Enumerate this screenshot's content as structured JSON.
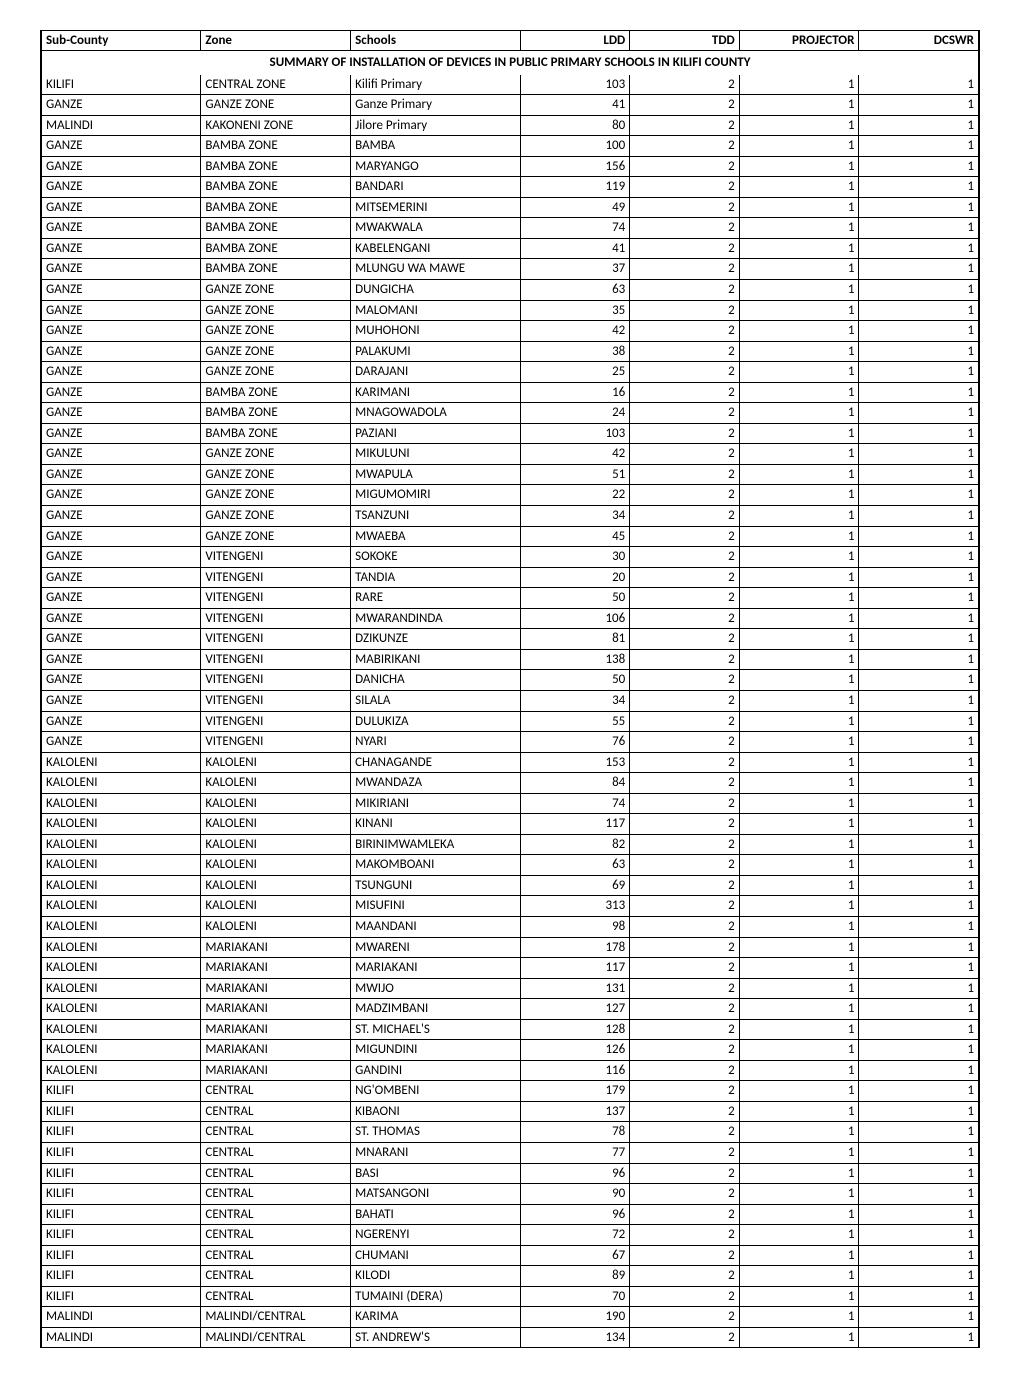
{
  "title": "SUMMARY OF  INSTALLATION OF DEVICES IN PUBLIC PRIMARY SCHOOLS IN KILIFI   COUNTY",
  "columns": [
    "Sub-County",
    "Zone",
    "Schools",
    "LDD",
    "TDD",
    "PROJECTOR",
    "DCSWR"
  ],
  "column_align": [
    "left",
    "left",
    "left",
    "right",
    "right",
    "right",
    "right"
  ],
  "rows": [
    [
      "KILIFI",
      "CENTRAL ZONE",
      "Kilifi Primary",
      "103",
      "2",
      "1",
      "1"
    ],
    [
      "GANZE",
      "GANZE ZONE",
      "Ganze Primary",
      "41",
      "2",
      "1",
      "1"
    ],
    [
      "MALINDI",
      "KAKONENI ZONE",
      "Jilore Primary",
      "80",
      "2",
      "1",
      "1"
    ],
    [
      "GANZE",
      "BAMBA ZONE",
      "BAMBA",
      "100",
      "2",
      "1",
      "1"
    ],
    [
      "GANZE",
      "BAMBA ZONE",
      "MARYANGO",
      "156",
      "2",
      "1",
      "1"
    ],
    [
      "GANZE",
      "BAMBA ZONE",
      "BANDARI",
      "119",
      "2",
      "1",
      "1"
    ],
    [
      "GANZE",
      "BAMBA ZONE",
      "MITSEMERINI",
      "49",
      "2",
      "1",
      "1"
    ],
    [
      "GANZE",
      "BAMBA ZONE",
      "MWAKWALA",
      "74",
      "2",
      "1",
      "1"
    ],
    [
      "GANZE",
      "BAMBA ZONE",
      "KABELENGANI",
      "41",
      "2",
      "1",
      "1"
    ],
    [
      "GANZE",
      "BAMBA ZONE",
      "MLUNGU WA MAWE",
      "37",
      "2",
      "1",
      "1"
    ],
    [
      "GANZE",
      "GANZE ZONE",
      "DUNGICHA",
      "63",
      "2",
      "1",
      "1"
    ],
    [
      "GANZE",
      "GANZE ZONE",
      "MALOMANI",
      "35",
      "2",
      "1",
      "1"
    ],
    [
      "GANZE",
      "GANZE ZONE",
      "MUHOHONI",
      "42",
      "2",
      "1",
      "1"
    ],
    [
      "GANZE",
      "GANZE ZONE",
      "PALAKUMI",
      "38",
      "2",
      "1",
      "1"
    ],
    [
      "GANZE",
      "GANZE ZONE",
      "DARAJANI",
      "25",
      "2",
      "1",
      "1"
    ],
    [
      "GANZE",
      "BAMBA ZONE",
      "KARIMANI",
      "16",
      "2",
      "1",
      "1"
    ],
    [
      "GANZE",
      "BAMBA ZONE",
      "MNAGOWADOLA",
      "24",
      "2",
      "1",
      "1"
    ],
    [
      "GANZE",
      "BAMBA ZONE",
      "PAZIANI",
      "103",
      "2",
      "1",
      "1"
    ],
    [
      "GANZE",
      "GANZE ZONE",
      "MIKULUNI",
      "42",
      "2",
      "1",
      "1"
    ],
    [
      "GANZE",
      "GANZE ZONE",
      "MWAPULA",
      "51",
      "2",
      "1",
      "1"
    ],
    [
      "GANZE",
      "GANZE ZONE",
      "MIGUMOMIRI",
      "22",
      "2",
      "1",
      "1"
    ],
    [
      "GANZE",
      "GANZE ZONE",
      "TSANZUNI",
      "34",
      "2",
      "1",
      "1"
    ],
    [
      "GANZE",
      "GANZE ZONE",
      "MWAEBA",
      "45",
      "2",
      "1",
      "1"
    ],
    [
      "GANZE",
      "VITENGENI",
      "SOKOKE",
      "30",
      "2",
      "1",
      "1"
    ],
    [
      "GANZE",
      "VITENGENI",
      "TANDIA",
      "20",
      "2",
      "1",
      "1"
    ],
    [
      "GANZE",
      "VITENGENI",
      "RARE",
      "50",
      "2",
      "1",
      "1"
    ],
    [
      "GANZE",
      "VITENGENI",
      "MWARANDINDA",
      "106",
      "2",
      "1",
      "1"
    ],
    [
      "GANZE",
      "VITENGENI",
      "DZIKUNZE",
      "81",
      "2",
      "1",
      "1"
    ],
    [
      "GANZE",
      "VITENGENI",
      "MABIRIKANI",
      "138",
      "2",
      "1",
      "1"
    ],
    [
      "GANZE",
      "VITENGENI",
      "DANICHA",
      "50",
      "2",
      "1",
      "1"
    ],
    [
      "GANZE",
      "VITENGENI",
      "SILALA",
      "34",
      "2",
      "1",
      "1"
    ],
    [
      "GANZE",
      "VITENGENI",
      "DULUKIZA",
      "55",
      "2",
      "1",
      "1"
    ],
    [
      "GANZE",
      "VITENGENI",
      "NYARI",
      "76",
      "2",
      "1",
      "1"
    ],
    [
      "KALOLENI",
      "KALOLENI",
      "CHANAGANDE",
      "153",
      "2",
      "1",
      "1"
    ],
    [
      "KALOLENI",
      "KALOLENI",
      "MWANDAZA",
      "84",
      "2",
      "1",
      "1"
    ],
    [
      "KALOLENI",
      "KALOLENI",
      "MIKIRIANI",
      "74",
      "2",
      "1",
      "1"
    ],
    [
      "KALOLENI",
      "KALOLENI",
      "KINANI",
      "117",
      "2",
      "1",
      "1"
    ],
    [
      "KALOLENI",
      "KALOLENI",
      "BIRINIMWAMLEKA",
      "82",
      "2",
      "1",
      "1"
    ],
    [
      "KALOLENI",
      "KALOLENI",
      "MAKOMBOANI",
      "63",
      "2",
      "1",
      "1"
    ],
    [
      "KALOLENI",
      "KALOLENI",
      "TSUNGUNI",
      "69",
      "2",
      "1",
      "1"
    ],
    [
      "KALOLENI",
      "KALOLENI",
      "MISUFINI",
      "313",
      "2",
      "1",
      "1"
    ],
    [
      "KALOLENI",
      "KALOLENI",
      "MAANDANI",
      "98",
      "2",
      "1",
      "1"
    ],
    [
      "KALOLENI",
      "MARIAKANI",
      "MWARENI",
      "178",
      "2",
      "1",
      "1"
    ],
    [
      "KALOLENI",
      "MARIAKANI",
      "MARIAKANI",
      "117",
      "2",
      "1",
      "1"
    ],
    [
      "KALOLENI",
      "MARIAKANI",
      "MWIJO",
      "131",
      "2",
      "1",
      "1"
    ],
    [
      "KALOLENI",
      "MARIAKANI",
      "MADZIMBANI",
      "127",
      "2",
      "1",
      "1"
    ],
    [
      "KALOLENI",
      "MARIAKANI",
      "ST. MICHAEL'S",
      "128",
      "2",
      "1",
      "1"
    ],
    [
      "KALOLENI",
      "MARIAKANI",
      "MIGUNDINI",
      "126",
      "2",
      "1",
      "1"
    ],
    [
      "KALOLENI",
      "MARIAKANI",
      "GANDINI",
      "116",
      "2",
      "1",
      "1"
    ],
    [
      "KILIFI",
      "CENTRAL",
      "NG'OMBENI",
      "179",
      "2",
      "1",
      "1"
    ],
    [
      "KILIFI",
      "CENTRAL",
      "KIBAONI",
      "137",
      "2",
      "1",
      "1"
    ],
    [
      "KILIFI",
      "CENTRAL",
      "ST. THOMAS",
      "78",
      "2",
      "1",
      "1"
    ],
    [
      "KILIFI",
      "CENTRAL",
      "MNARANI",
      "77",
      "2",
      "1",
      "1"
    ],
    [
      "KILIFI",
      "CENTRAL",
      "BASI",
      "96",
      "2",
      "1",
      "1"
    ],
    [
      "KILIFI",
      "CENTRAL",
      "MATSANGONI",
      "90",
      "2",
      "1",
      "1"
    ],
    [
      "KILIFI",
      "CENTRAL",
      "BAHATI",
      "96",
      "2",
      "1",
      "1"
    ],
    [
      "KILIFI",
      "CENTRAL",
      "NGERENYI",
      "72",
      "2",
      "1",
      "1"
    ],
    [
      "KILIFI",
      "CENTRAL",
      "CHUMANI",
      "67",
      "2",
      "1",
      "1"
    ],
    [
      "KILIFI",
      "CENTRAL",
      "KILODI",
      "89",
      "2",
      "1",
      "1"
    ],
    [
      "KILIFI",
      "CENTRAL",
      "TUMAINI (DERA)",
      "70",
      "2",
      "1",
      "1"
    ],
    [
      "MALINDI",
      "MALINDI/CENTRAL",
      "KARIMA",
      "190",
      "2",
      "1",
      "1"
    ],
    [
      "MALINDI",
      "MALINDI/CENTRAL",
      "ST. ANDREW'S",
      "134",
      "2",
      "1",
      "1"
    ]
  ],
  "styles": {
    "font_family": "Calibri, Arial, sans-serif",
    "font_size_pt": 10,
    "title_font_size_pt": 10,
    "border_color": "#000000",
    "background_color": "#ffffff",
    "text_color": "#000000"
  }
}
